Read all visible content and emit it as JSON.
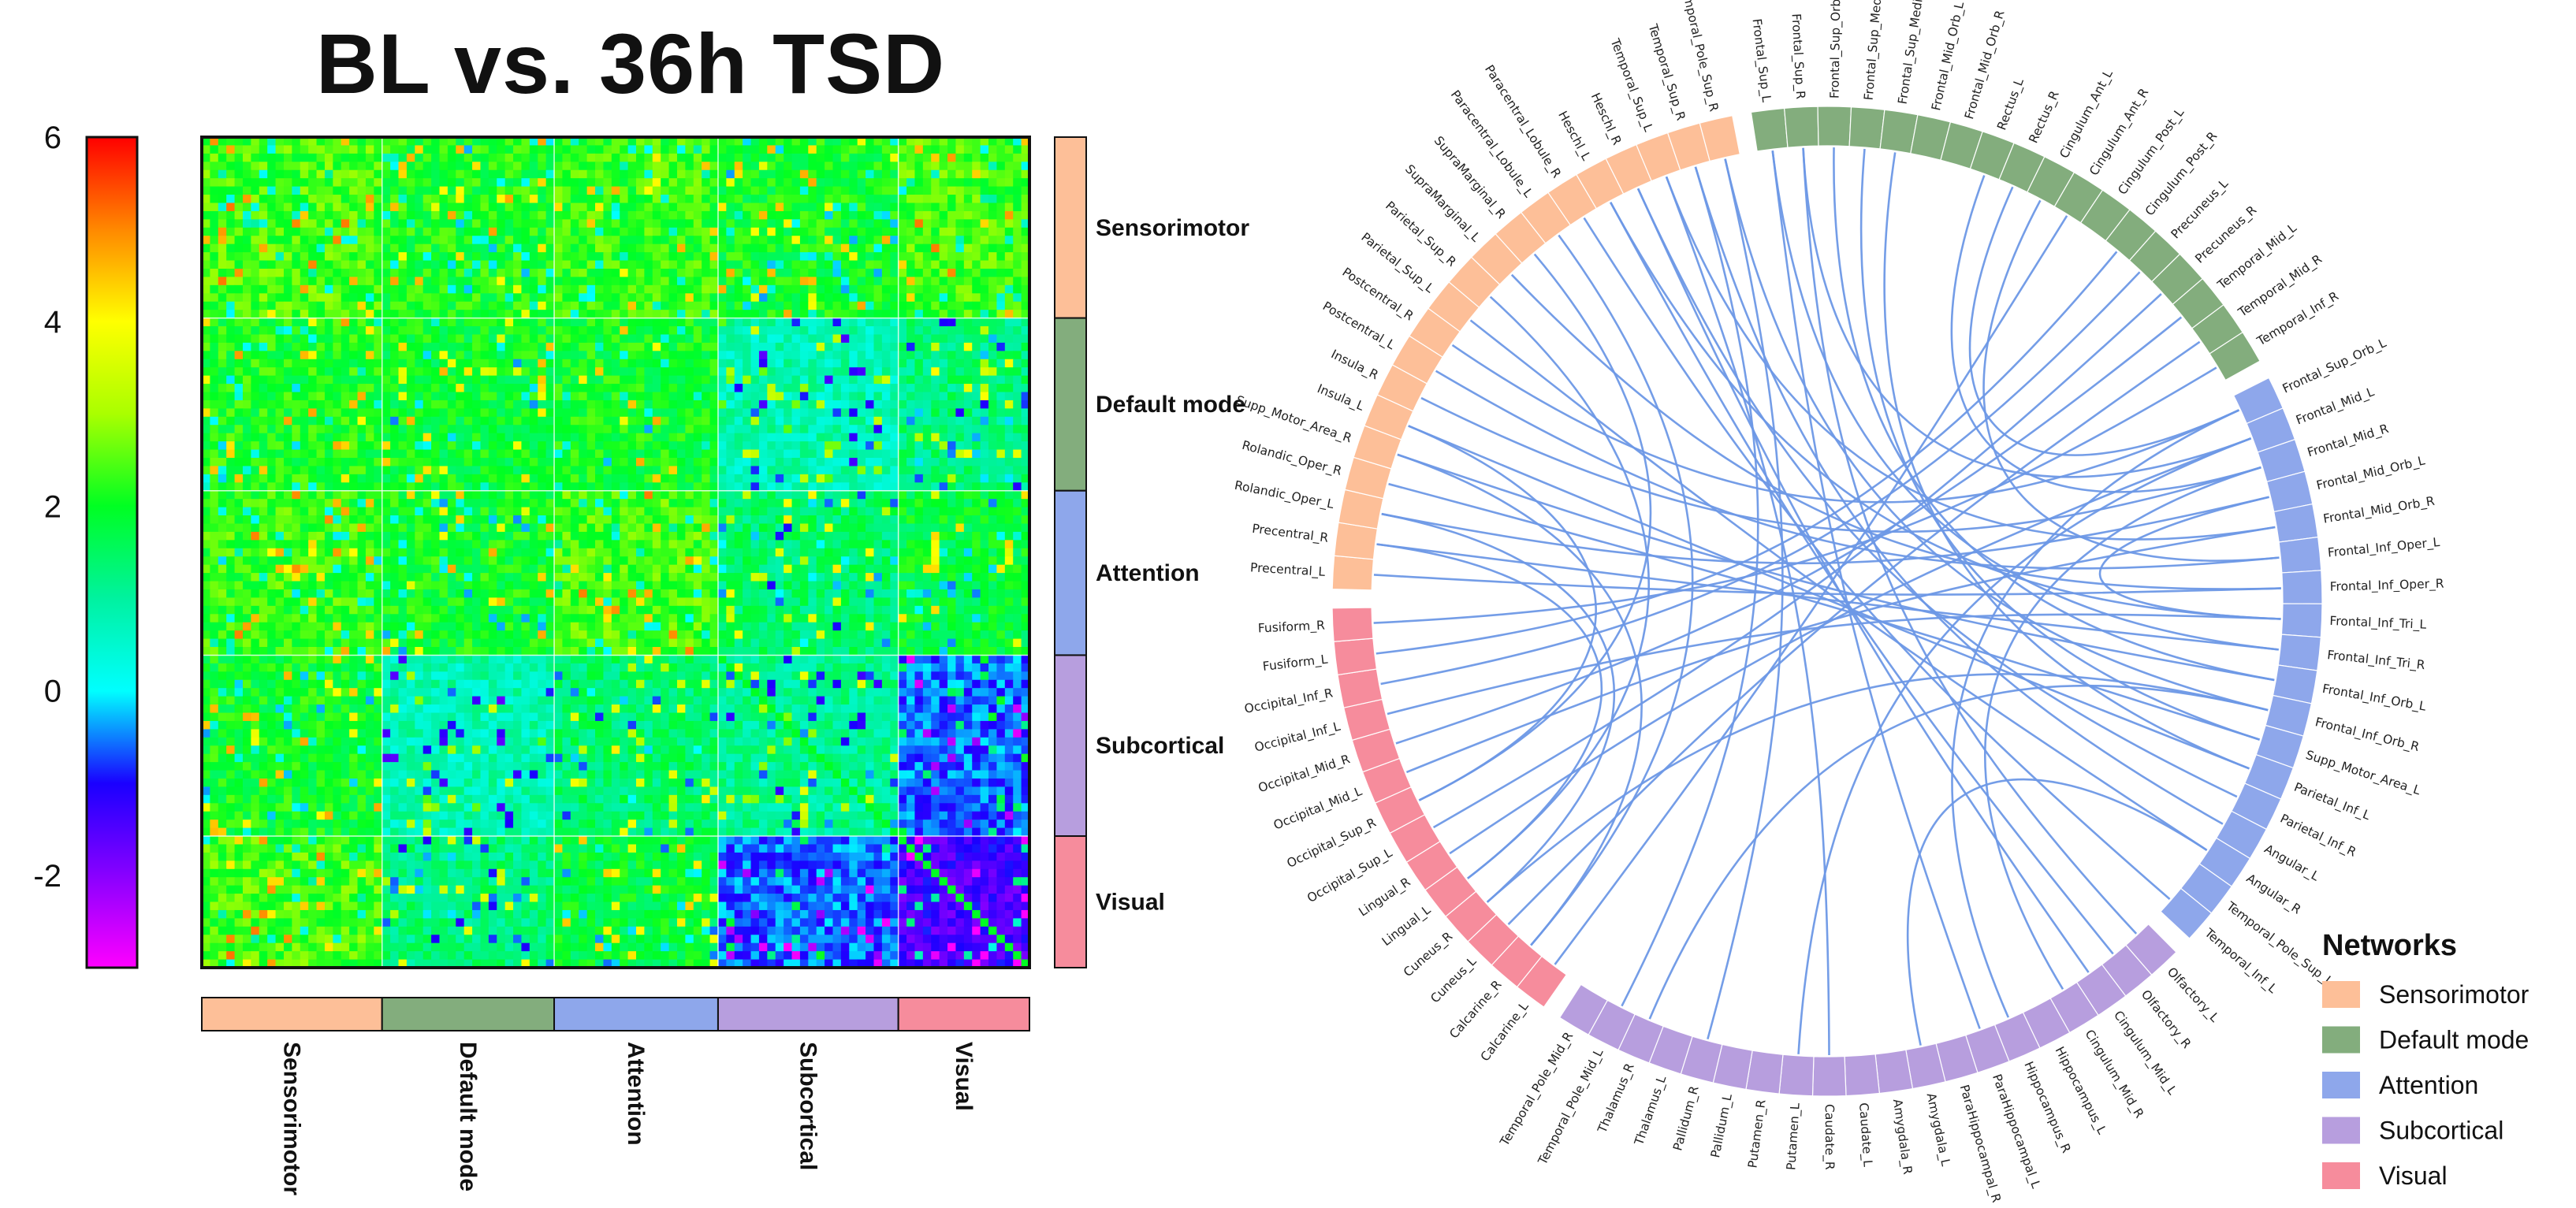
{
  "chart_data": [
    {
      "type": "heatmap",
      "title": "BL vs. 36h TSD",
      "colorbar": {
        "min": -3,
        "max": 6,
        "ticks": [
          "6",
          "4",
          "2",
          "0",
          "-2"
        ],
        "tick_values": [
          6,
          4,
          2,
          0,
          -2
        ]
      },
      "networks": [
        {
          "name": "Sensorimotor",
          "color": "#FDBF98",
          "size": 22
        },
        {
          "name": "Default mode",
          "color": "#83AD7D",
          "size": 21
        },
        {
          "name": "Attention",
          "color": "#8EA7EB",
          "size": 20
        },
        {
          "name": "Subcortical",
          "color": "#B79EDE",
          "size": 22
        },
        {
          "name": "Visual",
          "color": "#F68C9C",
          "size": 16
        }
      ],
      "block_means": [
        [
          2.4,
          2.1,
          2.3,
          2.0,
          2.4
        ],
        [
          2.1,
          1.9,
          2.0,
          0.8,
          1.3
        ],
        [
          2.3,
          2.0,
          2.4,
          1.4,
          1.8
        ],
        [
          2.0,
          0.8,
          1.4,
          1.1,
          -0.6
        ],
        [
          2.4,
          1.3,
          1.8,
          -0.6,
          -1.4
        ]
      ]
    },
    {
      "type": "chord",
      "legend_title": "Networks",
      "segments": [
        {
          "network": "Sensorimotor",
          "rois": [
            "Precentral_L",
            "Precentral_R",
            "Rolandic_Oper_L",
            "Rolandic_Oper_R",
            "Supp_Motor_Area_R",
            "Insula_L",
            "Insula_R",
            "Postcentral_L",
            "Postcentral_R",
            "Parietal_Sup_L",
            "Parietal_Sup_R",
            "SupraMarginal_L",
            "SupraMarginal_R",
            "Paracentral_Lobule_L",
            "Paracentral_Lobule_R",
            "Heschl_L",
            "Heschl_R",
            "Temporal_Sup_L",
            "Temporal_Sup_R",
            "Temporal_Pole_Sup_R"
          ]
        },
        {
          "network": "Default mode",
          "rois": [
            "Frontal_Sup_L",
            "Frontal_Sup_R",
            "Frontal_Sup_Orb_R",
            "Frontal_Sup_Medial_L",
            "Frontal_Sup_Medial_R",
            "Frontal_Mid_Orb_L",
            "Frontal_Mid_Orb_R",
            "Rectus_L",
            "Rectus_R",
            "Cingulum_Ant_L",
            "Cingulum_Ant_R",
            "Cingulum_Post_L",
            "Cingulum_Post_R",
            "Precuneus_L",
            "Precuneus_R",
            "Temporal_Mid_L",
            "Temporal_Mid_R",
            "Temporal_Inf_R"
          ]
        },
        {
          "network": "Attention",
          "rois": [
            "Frontal_Sup_Orb_L",
            "Frontal_Mid_L",
            "Frontal_Mid_R",
            "Frontal_Mid_Orb_L",
            "Frontal_Mid_Orb_R",
            "Frontal_Inf_Oper_L",
            "Frontal_Inf_Oper_R",
            "Frontal_Inf_Tri_L",
            "Frontal_Inf_Tri_R",
            "Frontal_Inf_Orb_L",
            "Frontal_Inf_Orb_R",
            "Supp_Motor_Area_L",
            "Parietal_Inf_L",
            "Parietal_Inf_R",
            "Angular_L",
            "Angular_R",
            "Temporal_Pole_Sup_L",
            "Temporal_Inf_L"
          ]
        },
        {
          "network": "Subcortical",
          "rois": [
            "Olfactory_L",
            "Olfactory_R",
            "Cingulum_Mid_L",
            "Cingulum_Mid_R",
            "Hippocampus_L",
            "Hippocampus_R",
            "ParaHippocampal_L",
            "ParaHippocampal_R",
            "Amygdala_L",
            "Amygdala_R",
            "Caudate_L",
            "Caudate_R",
            "Putamen_L",
            "Putamen_R",
            "Pallidum_L",
            "Pallidum_R",
            "Thalamus_L",
            "Thalamus_R",
            "Temporal_Pole_Mid_L",
            "Temporal_Pole_Mid_R"
          ]
        },
        {
          "network": "Visual",
          "rois": [
            "Calcarine_L",
            "Calcarine_R",
            "Cuneus_L",
            "Cuneus_R",
            "Lingual_L",
            "Lingual_R",
            "Occipital_Sup_L",
            "Occipital_Sup_R",
            "Occipital_Mid_L",
            "Occipital_Mid_R",
            "Occipital_Inf_L",
            "Occipital_Inf_R",
            "Fusiform_L",
            "Fusiform_R"
          ]
        }
      ],
      "links": [
        [
          "Fusiform_R",
          "Temporal_Inf_R"
        ],
        [
          "Fusiform_L",
          "Cingulum_Post_R"
        ],
        [
          "Occipital_Inf_R",
          "Precuneus_L"
        ],
        [
          "Occipital_Inf_L",
          "Frontal_Inf_Tri_L"
        ],
        [
          "Occipital_Mid_R",
          "Temporal_Mid_L"
        ],
        [
          "Occipital_Mid_L",
          "Frontal_Mid_Orb_R"
        ],
        [
          "Occipital_Sup_R",
          "SupraMarginal_R"
        ],
        [
          "Occipital_Sup_L",
          "Precuneus_R"
        ],
        [
          "Lingual_R",
          "Frontal_Mid_L"
        ],
        [
          "Lingual_L",
          "Parietal_Sup_R"
        ],
        [
          "Cuneus_R",
          "Frontal_Inf_Orb_R"
        ],
        [
          "Cuneus_L",
          "Temporal_Mid_R"
        ],
        [
          "Calcarine_R",
          "Paracentral_Lobule_L"
        ],
        [
          "Calcarine_L",
          "Cingulum_Ant_R"
        ],
        [
          "Precentral_L",
          "Frontal_Inf_Oper_R"
        ],
        [
          "Precentral_R",
          "Frontal_Inf_Tri_R"
        ],
        [
          "Rolandic_Oper_L",
          "Frontal_Mid_Orb_L"
        ],
        [
          "Rolandic_Oper_R",
          "Supp_Motor_Area_L"
        ],
        [
          "Supp_Motor_Area_R",
          "Frontal_Inf_Orb_L"
        ],
        [
          "Insula_L",
          "Parietal_Inf_L"
        ],
        [
          "Insula_R",
          "Frontal_Mid_R"
        ],
        [
          "Postcentral_L",
          "Frontal_Inf_Oper_L"
        ],
        [
          "Postcentral_R",
          "Frontal_Sup_Orb_L"
        ],
        [
          "Parietal_Sup_L",
          "Angular_R"
        ],
        [
          "Heschl_L",
          "Frontal_Inf_Tri_L"
        ],
        [
          "Heschl_R",
          "Parietal_Inf_R"
        ],
        [
          "Temporal_Sup_L",
          "Frontal_Mid_Orb_R"
        ],
        [
          "Temporal_Sup_R",
          "Angular_L"
        ],
        [
          "Temporal_Pole_Sup_R",
          "Frontal_Inf_Orb_R"
        ],
        [
          "Paracentral_Lobule_R",
          "Temporal_Inf_L"
        ],
        [
          "SupraMarginal_L",
          "Frontal_Inf_Oper_R"
        ],
        [
          "Frontal_Sup_L",
          "Frontal_Inf_Tri_R"
        ],
        [
          "Frontal_Sup_R",
          "Frontal_Mid_L"
        ],
        [
          "Frontal_Sup_Orb_R",
          "Frontal_Inf_Orb_L"
        ],
        [
          "Frontal_Sup_Medial_L",
          "Supp_Motor_Area_L"
        ],
        [
          "Frontal_Sup_Medial_R",
          "Parietal_Inf_L"
        ],
        [
          "Rectus_L",
          "Frontal_Mid_R"
        ],
        [
          "Rectus_R",
          "Frontal_Sup_Orb_L"
        ],
        [
          "Cingulum_Ant_L",
          "Frontal_Inf_Oper_L"
        ],
        [
          "Frontal_Mid_Orb_L",
          "Frontal_Inf_Tri_L"
        ],
        [
          "Thalamus_R",
          "Frontal_Inf_Orb_R"
        ],
        [
          "Putamen_L",
          "Frontal_Mid_L"
        ],
        [
          "Amygdala_L",
          "Angular_R"
        ],
        [
          "Hippocampus_R",
          "Frontal_Sup_Orb_L"
        ],
        [
          "Cingulum_Mid_R",
          "Frontal_Mid_R"
        ],
        [
          "Temporal_Pole_Mid_L",
          "Temporal_Sup_R"
        ],
        [
          "Pallidum_R",
          "Temporal_Pole_Sup_R"
        ],
        [
          "Cingulum_Mid_L",
          "Heschl_R"
        ],
        [
          "Olfactory_L",
          "Frontal_Sup_R"
        ],
        [
          "ParaHippocampal_L",
          "Frontal_Sup_L"
        ],
        [
          "Caudate_R",
          "Temporal_Sup_L"
        ],
        [
          "Calcarine_R",
          "Supp_Motor_Area_R"
        ],
        [
          "Lingual_L",
          "Precentral_R"
        ],
        [
          "Cuneus_R",
          "Rolandic_Oper_L"
        ],
        [
          "Occipital_Sup_R",
          "Insula_L"
        ],
        [
          "Olfactory_R",
          "Heschl_L"
        ]
      ]
    }
  ]
}
